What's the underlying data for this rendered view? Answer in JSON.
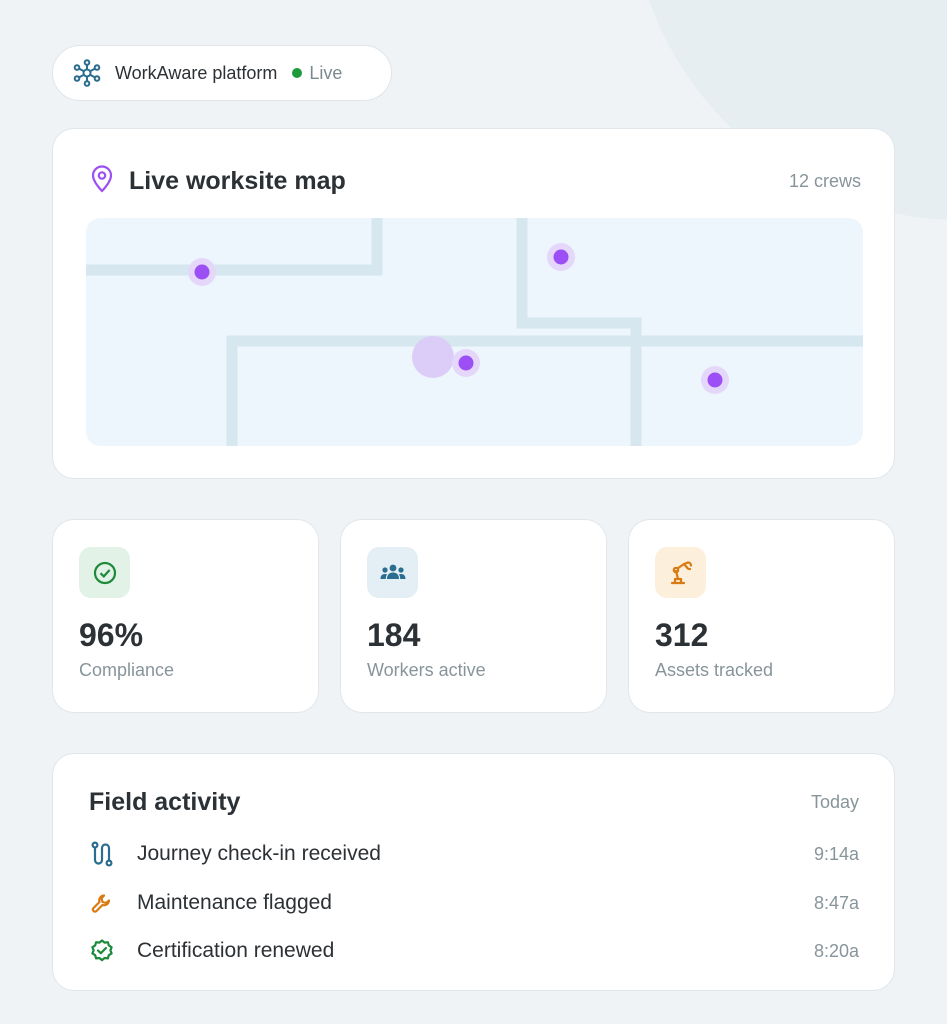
{
  "brand": {
    "name": "WorkAware platform",
    "status": "Live",
    "status_color": "#1d9a3c",
    "icon": "network-hub-icon"
  },
  "map": {
    "title": "Live worksite map",
    "crews": "12 crews",
    "icon": "map-pin-icon",
    "pin_color": "#9b4ff5"
  },
  "stats": [
    {
      "value": "96%",
      "label": "Compliance",
      "icon": "check-circle-icon",
      "color": "#1d8a3a",
      "bg": "#e3f2e6"
    },
    {
      "value": "184",
      "label": "Workers active",
      "icon": "users-icon",
      "color": "#2a6d8f",
      "bg": "#e3eff4"
    },
    {
      "value": "312",
      "label": "Assets tracked",
      "icon": "robot-arm-icon",
      "color": "#d97a12",
      "bg": "#fcefdc"
    }
  ],
  "activity": {
    "title": "Field activity",
    "period": "Today",
    "items": [
      {
        "text": "Journey check-in received",
        "time": "9:14a",
        "icon": "route-icon",
        "color": "#2a6d8f"
      },
      {
        "text": "Maintenance flagged",
        "time": "8:47a",
        "icon": "wrench-icon",
        "color": "#d97a12"
      },
      {
        "text": "Certification renewed",
        "time": "8:20a",
        "icon": "badge-check-icon",
        "color": "#1d8a3a"
      }
    ]
  }
}
